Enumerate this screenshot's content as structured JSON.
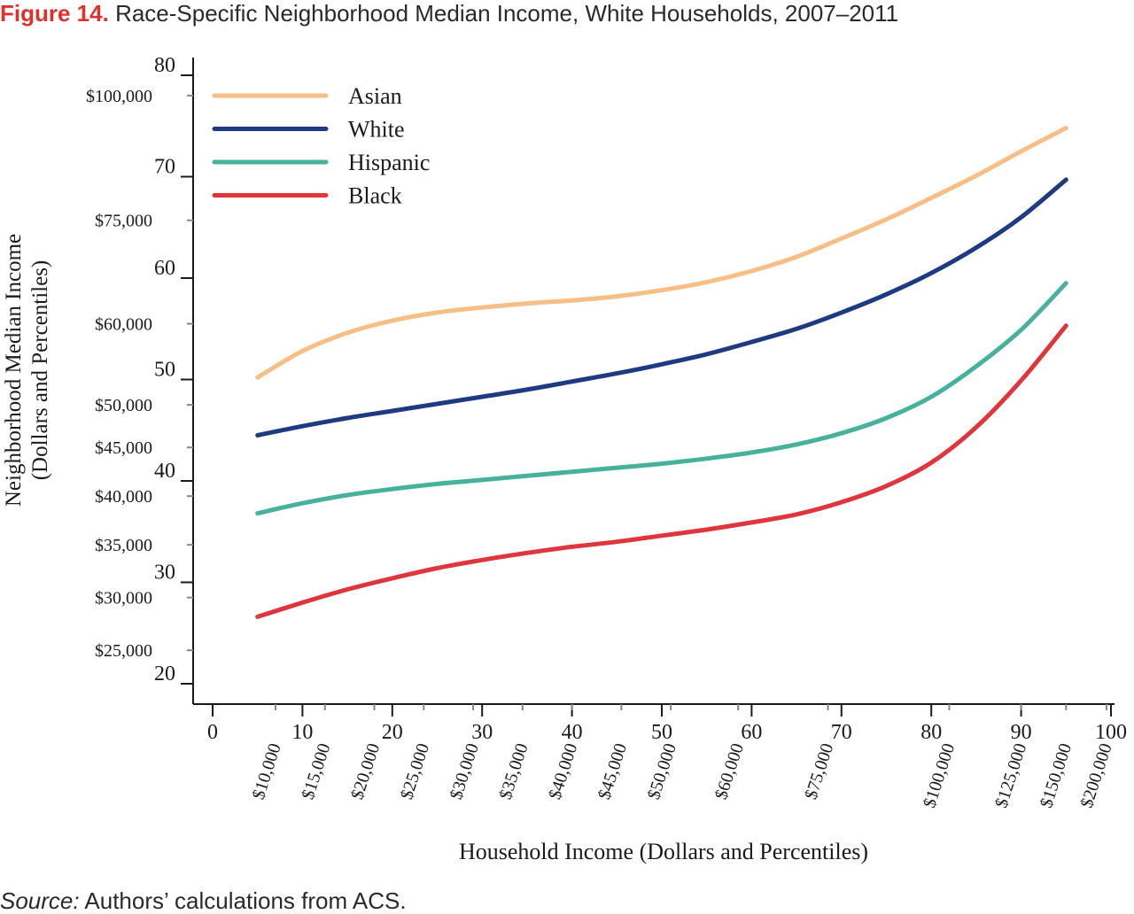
{
  "header": {
    "figure_label": "Figure 14.",
    "title": "Race-Specific Neighborhood Median Income, White Households, 2007–2011"
  },
  "footer": {
    "source_label": "Source:",
    "source_text": "Authors’ calculations from ACS."
  },
  "chart_data": {
    "type": "line",
    "title": "Race-Specific Neighborhood Median Income, White Households, 2007–2011",
    "xlabel": "Household Income (Dollars and Percentiles)",
    "ylabel_line1": "Neighborhood Median Income",
    "ylabel_line2": "(Dollars and Percentiles)",
    "xlim": [
      0,
      100
    ],
    "ylim": [
      20,
      80
    ],
    "x_ticks": [
      0,
      10,
      20,
      30,
      40,
      50,
      60,
      70,
      80,
      90,
      100
    ],
    "y_ticks": [
      20,
      30,
      40,
      50,
      60,
      70,
      80
    ],
    "x_dollar_ticks": [
      {
        "x": 7,
        "label": "$10,000"
      },
      {
        "x": 12.5,
        "label": "$15,000"
      },
      {
        "x": 18,
        "label": "$20,000"
      },
      {
        "x": 23.5,
        "label": "$25,000"
      },
      {
        "x": 29,
        "label": "$30,000"
      },
      {
        "x": 34.5,
        "label": "$35,000"
      },
      {
        "x": 40,
        "label": "$40,000"
      },
      {
        "x": 45.5,
        "label": "$45,000"
      },
      {
        "x": 51,
        "label": "$50,000"
      },
      {
        "x": 58.5,
        "label": "$60,000"
      },
      {
        "x": 68.5,
        "label": "$75,000"
      },
      {
        "x": 82,
        "label": "$100,000"
      },
      {
        "x": 90,
        "label": "$125,000"
      },
      {
        "x": 95,
        "label": "$150,000"
      },
      {
        "x": 99.5,
        "label": "$200,000"
      }
    ],
    "y_dollar_ticks": [
      {
        "y": 78,
        "label": "$100,000"
      },
      {
        "y": 65.7,
        "label": "$75,000"
      },
      {
        "y": 55.5,
        "label": "$60,000"
      },
      {
        "y": 47.5,
        "label": "$50,000"
      },
      {
        "y": 43.3,
        "label": "$45,000"
      },
      {
        "y": 38.5,
        "label": "$40,000"
      },
      {
        "y": 33.7,
        "label": "$35,000"
      },
      {
        "y": 28.5,
        "label": "$30,000"
      },
      {
        "y": 23.3,
        "label": "$25,000"
      }
    ],
    "x": [
      5,
      10,
      15,
      20,
      25,
      30,
      35,
      40,
      45,
      50,
      55,
      60,
      65,
      70,
      75,
      80,
      85,
      90,
      95
    ],
    "series": [
      {
        "name": "Asian",
        "color": "#f7be86",
        "values": [
          50.2,
          52.8,
          54.6,
          55.8,
          56.6,
          57.1,
          57.5,
          57.8,
          58.2,
          58.8,
          59.6,
          60.7,
          62.1,
          63.9,
          65.8,
          67.9,
          70.1,
          72.5,
          74.8
        ]
      },
      {
        "name": "White",
        "color": "#1d3a82",
        "values": [
          44.5,
          45.4,
          46.2,
          46.9,
          47.6,
          48.3,
          49.0,
          49.8,
          50.6,
          51.5,
          52.5,
          53.7,
          55.0,
          56.6,
          58.4,
          60.5,
          63.0,
          66.0,
          69.7
        ]
      },
      {
        "name": "Hispanic",
        "color": "#46b29d",
        "values": [
          36.8,
          37.8,
          38.6,
          39.2,
          39.7,
          40.1,
          40.5,
          40.9,
          41.3,
          41.7,
          42.2,
          42.8,
          43.6,
          44.7,
          46.2,
          48.3,
          51.3,
          54.9,
          59.5
        ]
      },
      {
        "name": "Black",
        "color": "#e0353c",
        "values": [
          26.6,
          28.0,
          29.3,
          30.4,
          31.4,
          32.2,
          32.9,
          33.5,
          34.0,
          34.6,
          35.2,
          35.9,
          36.7,
          37.9,
          39.5,
          41.8,
          45.3,
          49.9,
          55.3
        ]
      }
    ],
    "legend_position": "top-left",
    "grid": false
  }
}
